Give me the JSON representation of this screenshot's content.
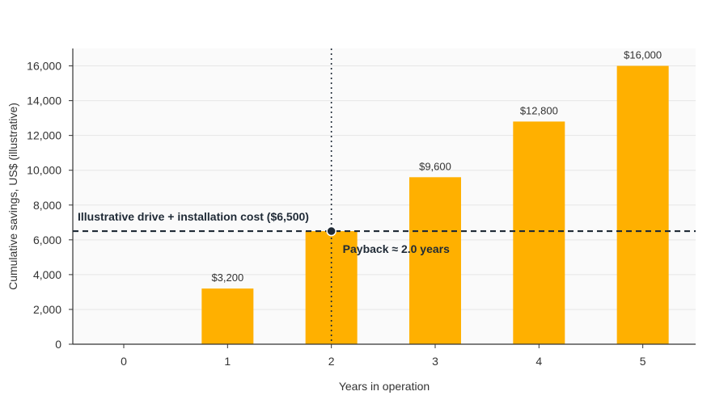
{
  "chart_data": {
    "type": "bar",
    "categories": [
      "0",
      "1",
      "2",
      "3",
      "4",
      "5"
    ],
    "values": [
      0,
      3200,
      6500,
      9600,
      12800,
      16000
    ],
    "bar_labels": [
      "",
      "$3,200",
      "",
      "$9,600",
      "$12,800",
      "$16,000"
    ],
    "xlabel": "Years in operation",
    "ylabel": "Cumulative savings, US$ (illustrative)",
    "ylim": [
      0,
      17000
    ],
    "yticks": [
      0,
      2000,
      4000,
      6000,
      8000,
      10000,
      12000,
      14000,
      16000
    ],
    "ytick_labels": [
      "0",
      "2,000",
      "4,000",
      "6,000",
      "8,000",
      "10,000",
      "12,000",
      "14,000",
      "16,000"
    ],
    "grid": true,
    "bar_color": "#FFB000",
    "threshold": {
      "value": 6500,
      "label": "Illustrative drive + installation cost ($6,500)",
      "color": "#1f2a36"
    },
    "payback": {
      "x": 2.0,
      "label": "Payback ≈ 2.0 years"
    }
  }
}
